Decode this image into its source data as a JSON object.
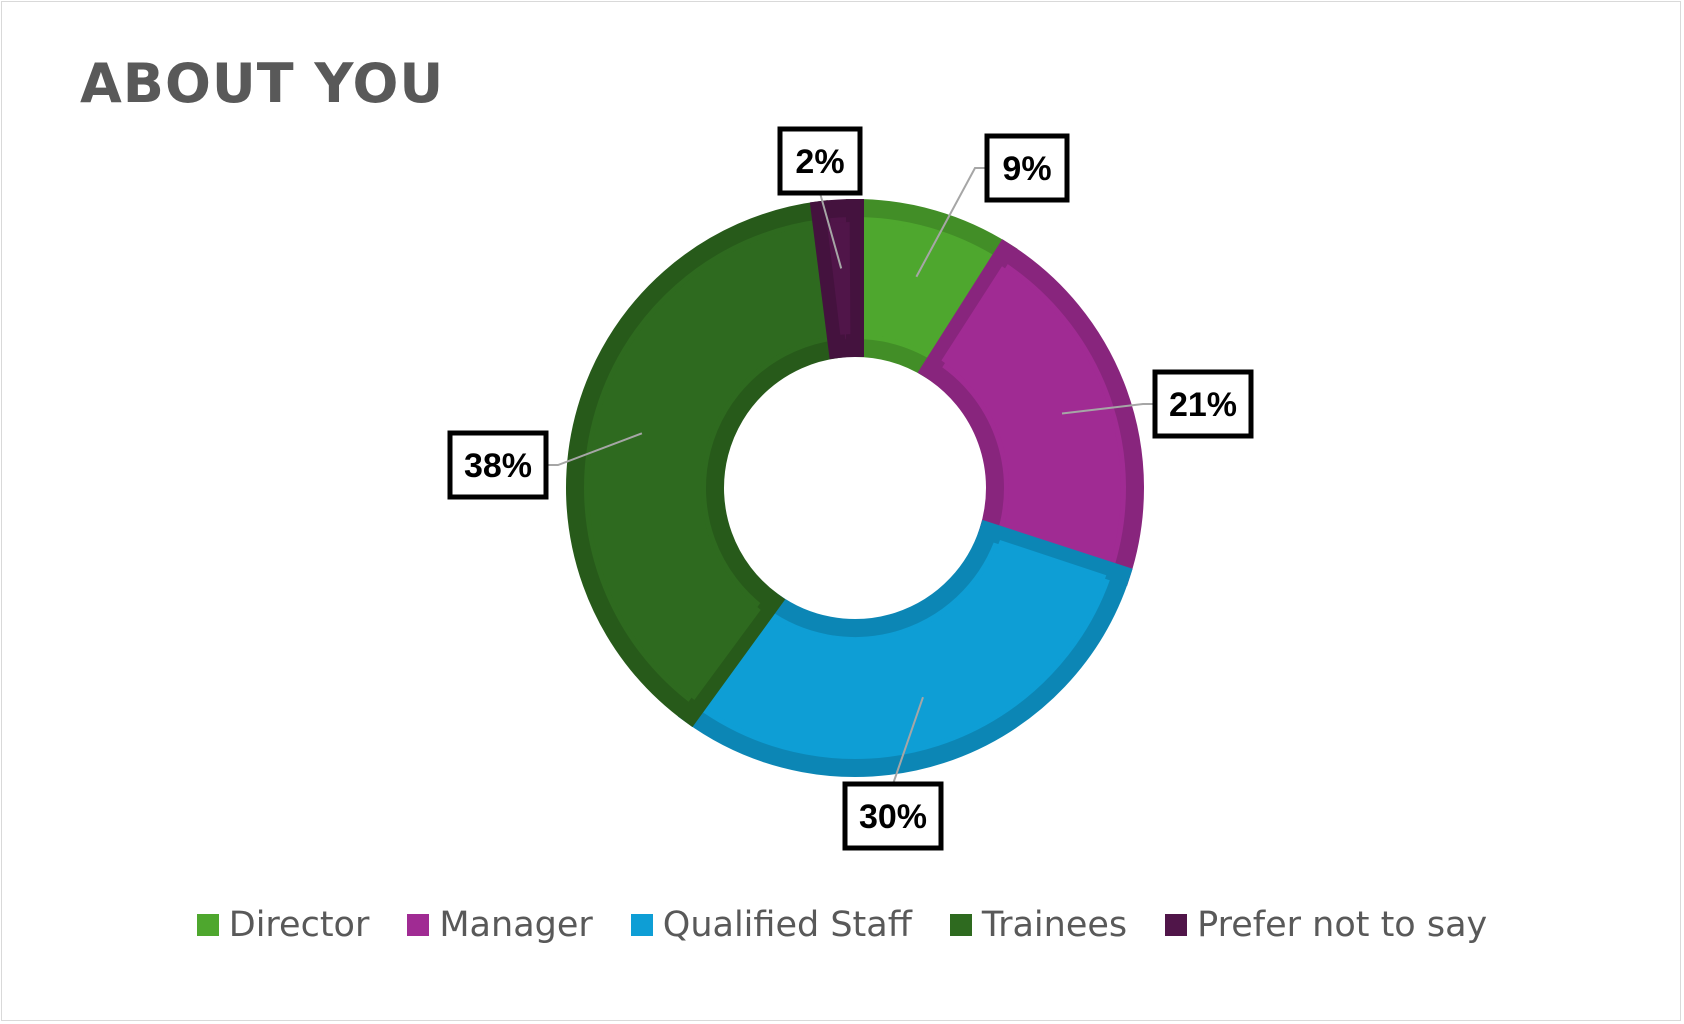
{
  "chart_data": {
    "type": "pie",
    "title": "ABOUT YOU",
    "categories": [
      "Director",
      "Manager",
      "Qualified Staff",
      "Trainees",
      "Prefer not to say"
    ],
    "values": [
      9,
      21,
      30,
      38,
      2
    ],
    "data_labels": [
      "9%",
      "21%",
      "30%",
      "38%",
      "2%"
    ],
    "colors": [
      "#4ea72e",
      "#a02b93",
      "#0e9ed5",
      "#2e6a1f",
      "#501549"
    ],
    "donut": true,
    "legend_position": "bottom"
  }
}
